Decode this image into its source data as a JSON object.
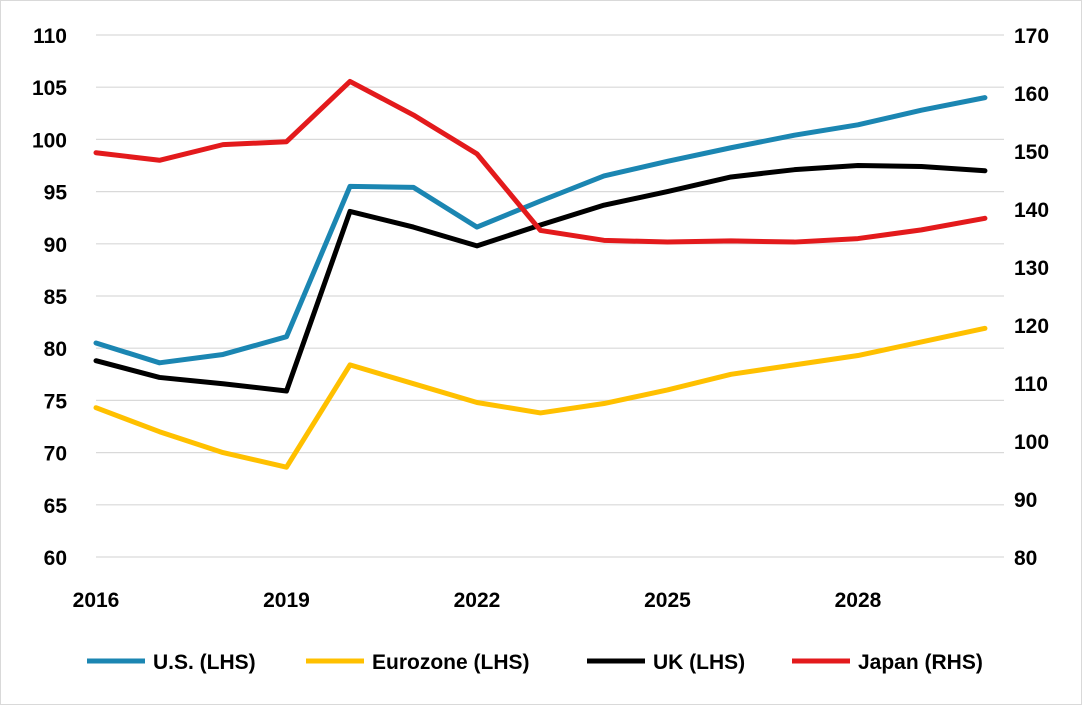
{
  "chart_data": {
    "type": "line",
    "title": "",
    "xlabel": "",
    "ylabel": "",
    "y2label": "",
    "x": [
      2016,
      2017,
      2018,
      2019,
      2020,
      2021,
      2022,
      2023,
      2024,
      2025,
      2026,
      2027,
      2028,
      2029,
      2030
    ],
    "x_ticks": [
      2016,
      2019,
      2022,
      2025,
      2028
    ],
    "x_tick_labels": [
      "2016",
      "2019",
      "2022",
      "2025",
      "2028"
    ],
    "xlim": [
      2016,
      2030.3
    ],
    "ylim": [
      60,
      110
    ],
    "y_ticks": [
      60,
      65,
      70,
      75,
      80,
      85,
      90,
      95,
      100,
      105,
      110
    ],
    "y_tick_labels": [
      "60",
      "65",
      "70",
      "75",
      "80",
      "85",
      "90",
      "95",
      "100",
      "105",
      "110"
    ],
    "y2lim": [
      80,
      170
    ],
    "y2_ticks": [
      80,
      90,
      100,
      110,
      120,
      130,
      140,
      150,
      160,
      170
    ],
    "y2_tick_labels": [
      "80",
      "90",
      "100",
      "110",
      "120",
      "130",
      "140",
      "150",
      "160",
      "170"
    ],
    "grid": true,
    "legend_position": "bottom",
    "series": [
      {
        "name": "U.S. (LHS)",
        "axis": "left",
        "color": "#1B86B2",
        "values": [
          80.5,
          78.6,
          79.4,
          81.1,
          95.5,
          95.4,
          91.6,
          94.1,
          96.5,
          97.9,
          99.2,
          100.4,
          101.4,
          102.8,
          104.0
        ]
      },
      {
        "name": "Eurozone (LHS)",
        "axis": "left",
        "color": "#FFC000",
        "values": [
          74.3,
          72.0,
          70.0,
          68.6,
          78.4,
          76.6,
          74.8,
          73.8,
          74.7,
          76.0,
          77.5,
          78.4,
          79.3,
          80.6,
          81.9
        ]
      },
      {
        "name": "UK (LHS)",
        "axis": "left",
        "color": "#000000",
        "values": [
          78.8,
          77.2,
          76.6,
          75.9,
          93.1,
          91.6,
          89.8,
          91.8,
          93.7,
          95.0,
          96.4,
          97.1,
          97.5,
          97.4,
          97.0
        ]
      },
      {
        "name": "Japan (RHS)",
        "axis": "right",
        "color": "#E31A1C",
        "values": [
          149.7,
          148.4,
          151.1,
          151.6,
          162.0,
          156.2,
          149.5,
          136.3,
          134.6,
          134.3,
          134.5,
          134.3,
          134.9,
          136.4,
          138.4
        ]
      }
    ]
  }
}
